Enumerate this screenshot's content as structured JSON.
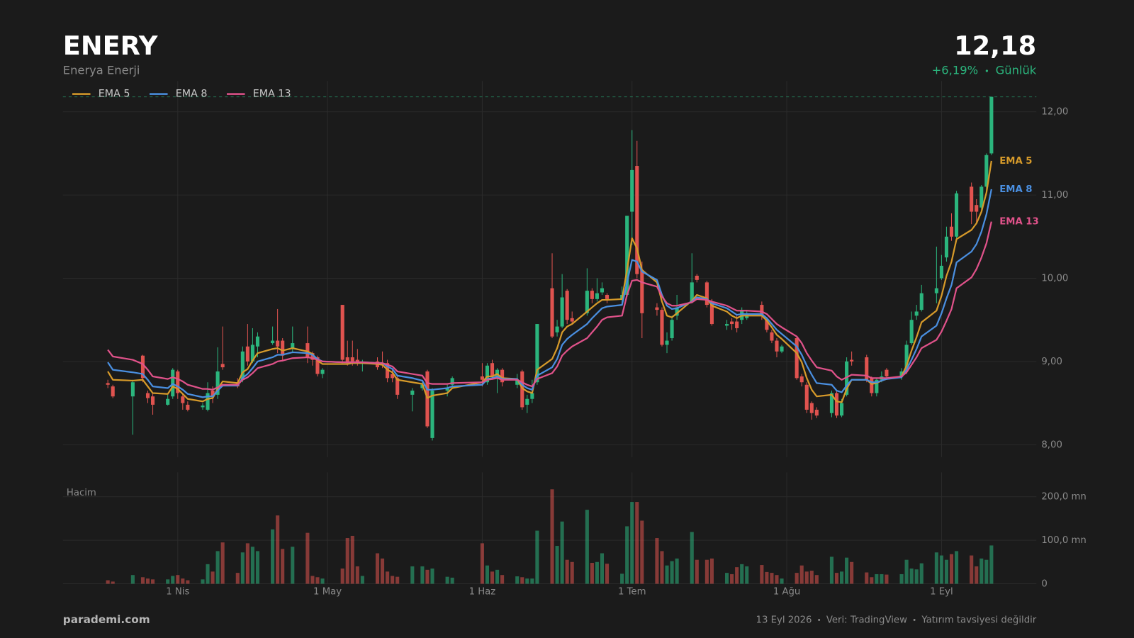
{
  "chart_data": {
    "type": "candlestick",
    "title": "ENERY",
    "subtitle": "Enerya Enerji",
    "last_price": {
      "value": 12.18,
      "label": "12,18"
    },
    "change": {
      "value": 6.19,
      "label": "+6,19%"
    },
    "period": "Günlük",
    "volume_label": "Hacim",
    "brand": "parademi.com",
    "date": "13 Eyl 2026",
    "source": "Veri: TradingView",
    "disclaimer": "Yatırım tavsiyesi değildir",
    "up_color": "#2bb57d",
    "down_color": "#e0534f",
    "grid": true,
    "legend": "top-left",
    "xlim": [
      "2026-03-09",
      "2026-09-20"
    ],
    "xticks": [
      {
        "value": "2026-04-01",
        "label": "1 Nis"
      },
      {
        "value": "2026-05-01",
        "label": "1 May"
      },
      {
        "value": "2026-06-01",
        "label": "1 Haz"
      },
      {
        "value": "2026-07-01",
        "label": "1 Tem"
      },
      {
        "value": "2026-08-01",
        "label": "1 Ağu"
      },
      {
        "value": "2026-09-01",
        "label": "1 Eyl"
      }
    ],
    "ylim": [
      7.85,
      12.37
    ],
    "yticks": [
      {
        "value": 8,
        "label": "8,00"
      },
      {
        "value": 9,
        "label": "9,00"
      },
      {
        "value": 10,
        "label": "10,00"
      },
      {
        "value": 11,
        "label": "11,00"
      },
      {
        "value": 12,
        "label": "12,00"
      }
    ],
    "volume_ylim": [
      0,
      256
    ],
    "volume_yticks": [
      0,
      {
        "value": 100,
        "label": "100,0 mn"
      },
      {
        "value": 200,
        "label": "200,0 mn"
      }
    ],
    "x": [
      "2026-03-18",
      "2026-03-19",
      "2026-03-23",
      "2026-03-25",
      "2026-03-26",
      "2026-03-27",
      "2026-03-30",
      "2026-03-31",
      "2026-04-01",
      "2026-04-02",
      "2026-04-03",
      "2026-04-06",
      "2026-04-07",
      "2026-04-08",
      "2026-04-09",
      "2026-04-10",
      "2026-04-13",
      "2026-04-14",
      "2026-04-15",
      "2026-04-16",
      "2026-04-17",
      "2026-04-20",
      "2026-04-21",
      "2026-04-22",
      "2026-04-24",
      "2026-04-27",
      "2026-04-28",
      "2026-04-29",
      "2026-04-30",
      "2026-05-04",
      "2026-05-05",
      "2026-05-06",
      "2026-05-07",
      "2026-05-08",
      "2026-05-11",
      "2026-05-12",
      "2026-05-13",
      "2026-05-14",
      "2026-05-15",
      "2026-05-18",
      "2026-05-20",
      "2026-05-21",
      "2026-05-22",
      "2026-05-25",
      "2026-05-26",
      "2026-06-01",
      "2026-06-02",
      "2026-06-03",
      "2026-06-04",
      "2026-06-05",
      "2026-06-08",
      "2026-06-09",
      "2026-06-10",
      "2026-06-11",
      "2026-06-12",
      "2026-06-15",
      "2026-06-16",
      "2026-06-17",
      "2026-06-18",
      "2026-06-19",
      "2026-06-22",
      "2026-06-23",
      "2026-06-24",
      "2026-06-25",
      "2026-06-26",
      "2026-06-29",
      "2026-06-30",
      "2026-07-01",
      "2026-07-02",
      "2026-07-03",
      "2026-07-06",
      "2026-07-07",
      "2026-07-08",
      "2026-07-09",
      "2026-07-10",
      "2026-07-13",
      "2026-07-14",
      "2026-07-16",
      "2026-07-17",
      "2026-07-20",
      "2026-07-21",
      "2026-07-22",
      "2026-07-23",
      "2026-07-24",
      "2026-07-27",
      "2026-07-28",
      "2026-07-29",
      "2026-07-30",
      "2026-07-31",
      "2026-08-03",
      "2026-08-04",
      "2026-08-05",
      "2026-08-06",
      "2026-08-07",
      "2026-08-10",
      "2026-08-11",
      "2026-08-12",
      "2026-08-13",
      "2026-08-14",
      "2026-08-17",
      "2026-08-18",
      "2026-08-19",
      "2026-08-20",
      "2026-08-21",
      "2026-08-24",
      "2026-08-25",
      "2026-08-26",
      "2026-08-27",
      "2026-08-28",
      "2026-08-31",
      "2026-09-01",
      "2026-09-02",
      "2026-09-03",
      "2026-09-04",
      "2026-09-07",
      "2026-09-08",
      "2026-09-09",
      "2026-09-10",
      "2026-09-11"
    ],
    "open": [
      8.74,
      8.7,
      8.58,
      9.07,
      8.62,
      8.58,
      8.48,
      8.58,
      8.88,
      8.58,
      8.48,
      8.45,
      8.42,
      8.65,
      8.6,
      8.97,
      8.75,
      8.78,
      9.18,
      9.0,
      9.18,
      9.22,
      9.25,
      9.25,
      9.15,
      9.22,
      9.1,
      9.05,
      8.85,
      9.68,
      9.05,
      9.05,
      9.02,
      8.98,
      9.0,
      8.98,
      8.98,
      8.85,
      8.8,
      8.6,
      8.68,
      8.88,
      8.08,
      8.65,
      8.72,
      8.82,
      8.75,
      8.98,
      8.8,
      8.9,
      8.72,
      8.88,
      8.48,
      8.55,
      8.75,
      9.88,
      9.35,
      9.42,
      9.85,
      9.52,
      9.58,
      9.85,
      9.75,
      9.83,
      9.8,
      9.75,
      9.8,
      10.8,
      11.35,
      10.1,
      9.65,
      9.62,
      9.2,
      9.28,
      9.55,
      9.72,
      10.03,
      9.95,
      9.72,
      9.43,
      9.48,
      9.48,
      9.5,
      9.52,
      9.68,
      9.5,
      9.35,
      9.25,
      9.12,
      9.28,
      8.82,
      8.72,
      8.5,
      8.42,
      8.38,
      8.62,
      8.35,
      8.6,
      9.02,
      9.05,
      8.8,
      8.62,
      8.78,
      8.9,
      8.82,
      8.9,
      9.22,
      9.55,
      9.62,
      9.82,
      10.0,
      10.25,
      10.62,
      10.5,
      11.1,
      10.88,
      10.85,
      11.1,
      11.5
    ],
    "high": [
      8.78,
      8.72,
      8.78,
      9.08,
      8.65,
      8.62,
      8.6,
      8.92,
      8.9,
      8.62,
      8.52,
      8.5,
      8.75,
      8.7,
      9.17,
      9.42,
      8.8,
      9.18,
      9.45,
      9.4,
      9.35,
      9.42,
      9.63,
      9.28,
      9.42,
      9.42,
      9.12,
      9.07,
      8.92,
      9.68,
      9.25,
      9.25,
      9.15,
      9.02,
      9.05,
      9.12,
      9.02,
      8.9,
      8.82,
      8.68,
      8.75,
      8.9,
      8.68,
      8.72,
      8.82,
      8.98,
      8.98,
      9.02,
      8.92,
      8.92,
      8.85,
      8.9,
      8.6,
      8.78,
      9.45,
      10.3,
      9.5,
      10.05,
      9.87,
      9.6,
      10.12,
      9.88,
      10.0,
      9.95,
      9.82,
      9.9,
      10.75,
      11.78,
      11.65,
      10.2,
      9.7,
      9.65,
      9.35,
      9.55,
      9.8,
      10.3,
      10.05,
      9.97,
      9.75,
      9.5,
      9.52,
      9.55,
      9.65,
      9.62,
      9.72,
      9.52,
      9.38,
      9.28,
      9.2,
      9.3,
      8.85,
      8.75,
      8.52,
      8.45,
      8.65,
      8.65,
      8.55,
      9.05,
      9.12,
      9.08,
      8.82,
      8.8,
      8.88,
      8.92,
      8.92,
      9.25,
      9.6,
      9.68,
      9.92,
      10.38,
      10.28,
      10.62,
      10.78,
      11.05,
      11.15,
      10.95,
      11.12,
      11.5,
      12.18
    ],
    "low": [
      8.68,
      8.56,
      8.12,
      8.75,
      8.5,
      8.36,
      8.47,
      8.55,
      8.55,
      8.42,
      8.4,
      8.42,
      8.4,
      8.5,
      8.55,
      8.9,
      8.68,
      8.75,
      8.95,
      8.98,
      9.05,
      9.2,
      9.1,
      9.0,
      9.1,
      8.98,
      8.95,
      8.82,
      8.8,
      8.98,
      8.95,
      8.95,
      8.95,
      8.88,
      8.9,
      8.92,
      8.75,
      8.75,
      8.55,
      8.4,
      8.65,
      8.2,
      8.05,
      8.58,
      8.68,
      8.7,
      8.72,
      8.78,
      8.62,
      8.7,
      8.68,
      8.42,
      8.38,
      8.5,
      8.72,
      9.28,
      9.3,
      9.4,
      9.45,
      9.45,
      9.55,
      9.7,
      9.72,
      9.8,
      9.7,
      9.7,
      9.78,
      10.4,
      10.0,
      9.28,
      9.55,
      9.18,
      9.1,
      9.25,
      9.5,
      9.7,
      9.95,
      9.65,
      9.43,
      9.38,
      9.38,
      9.35,
      9.45,
      9.5,
      9.5,
      9.35,
      9.22,
      9.05,
      9.1,
      8.78,
      8.7,
      8.38,
      8.3,
      8.32,
      8.33,
      8.32,
      8.33,
      8.58,
      8.95,
      8.75,
      8.58,
      8.58,
      8.75,
      8.8,
      8.78,
      8.85,
      9.2,
      9.5,
      9.6,
      9.7,
      9.98,
      10.2,
      10.45,
      10.48,
      10.65,
      10.65,
      10.82,
      11.05,
      11.48
    ],
    "close": [
      8.72,
      8.58,
      8.75,
      8.8,
      8.56,
      8.48,
      8.55,
      8.9,
      8.62,
      8.5,
      8.42,
      8.47,
      8.62,
      8.58,
      8.88,
      8.93,
      8.7,
      9.12,
      9.0,
      9.2,
      9.3,
      9.25,
      9.18,
      9.07,
      9.22,
      9.05,
      9.02,
      8.85,
      8.9,
      9.02,
      8.98,
      9.0,
      8.98,
      9.0,
      8.93,
      8.96,
      8.8,
      8.8,
      8.6,
      8.65,
      8.72,
      8.22,
      8.65,
      8.68,
      8.8,
      8.78,
      8.95,
      8.82,
      8.9,
      8.75,
      8.78,
      8.45,
      8.55,
      8.62,
      9.45,
      9.3,
      9.42,
      9.77,
      9.5,
      9.48,
      9.85,
      9.75,
      9.82,
      9.88,
      9.75,
      9.8,
      10.75,
      11.3,
      10.05,
      9.58,
      9.62,
      9.2,
      9.25,
      9.5,
      9.65,
      9.95,
      9.98,
      9.68,
      9.45,
      9.45,
      9.45,
      9.4,
      9.62,
      9.55,
      9.55,
      9.38,
      9.25,
      9.12,
      9.18,
      8.8,
      8.75,
      8.42,
      8.38,
      8.35,
      8.62,
      8.35,
      8.5,
      9.0,
      9.0,
      8.78,
      8.62,
      8.78,
      8.82,
      8.82,
      8.88,
      9.2,
      9.5,
      9.6,
      9.82,
      9.88,
      10.15,
      10.5,
      10.5,
      11.02,
      10.8,
      10.8,
      11.1,
      11.48,
      12.18
    ],
    "volume": [
      8,
      5,
      20,
      15,
      12,
      10,
      10,
      18,
      20,
      12,
      8,
      10,
      45,
      28,
      75,
      95,
      25,
      72,
      93,
      85,
      75,
      125,
      157,
      80,
      85,
      117,
      18,
      15,
      12,
      35,
      105,
      110,
      40,
      18,
      70,
      58,
      28,
      18,
      16,
      40,
      40,
      32,
      35,
      16,
      14,
      93,
      42,
      28,
      32,
      20,
      17,
      15,
      12,
      12,
      122,
      217,
      87,
      143,
      55,
      50,
      170,
      48,
      50,
      70,
      46,
      23,
      132,
      188,
      188,
      145,
      105,
      75,
      42,
      52,
      58,
      119,
      55,
      55,
      58,
      25,
      22,
      38,
      45,
      40,
      43,
      27,
      25,
      20,
      12,
      25,
      42,
      28,
      30,
      20,
      62,
      25,
      28,
      60,
      50,
      26,
      15,
      22,
      22,
      21,
      22,
      55,
      35,
      33,
      47,
      72,
      65,
      55,
      68,
      75,
      65,
      40,
      58,
      55,
      88
    ],
    "series": [
      {
        "name": "EMA 5",
        "color": "#d69a2a",
        "values": [
          8.88,
          8.78,
          8.77,
          8.78,
          8.7,
          8.62,
          8.61,
          8.7,
          8.67,
          8.61,
          8.55,
          8.52,
          8.55,
          8.56,
          8.67,
          8.76,
          8.74,
          8.87,
          8.91,
          9.01,
          9.1,
          9.15,
          9.16,
          9.13,
          9.16,
          9.12,
          9.09,
          9.01,
          8.97,
          8.97,
          8.97,
          8.98,
          8.98,
          8.98,
          8.97,
          8.96,
          8.9,
          8.87,
          8.78,
          8.75,
          8.73,
          8.56,
          8.59,
          8.62,
          8.68,
          8.75,
          8.82,
          8.82,
          8.85,
          8.8,
          8.79,
          8.68,
          8.64,
          8.62,
          8.9,
          9.03,
          9.16,
          9.35,
          9.42,
          9.45,
          9.6,
          9.65,
          9.7,
          9.74,
          9.74,
          9.75,
          10.1,
          10.48,
          10.36,
          10.1,
          9.95,
          9.72,
          9.55,
          9.53,
          9.58,
          9.73,
          9.8,
          9.76,
          9.67,
          9.6,
          9.55,
          9.52,
          9.55,
          9.55,
          9.55,
          9.49,
          9.41,
          9.32,
          9.27,
          9.1,
          8.99,
          8.8,
          8.66,
          8.58,
          8.6,
          8.52,
          8.51,
          8.67,
          8.78,
          8.78,
          8.73,
          8.74,
          8.77,
          8.79,
          8.82,
          8.95,
          9.13,
          9.29,
          9.47,
          9.61,
          9.79,
          10.03,
          10.2,
          10.47,
          10.58,
          10.66,
          10.8,
          11.03,
          11.41
        ]
      },
      {
        "name": "EMA 8",
        "color": "#4a8fe0",
        "values": [
          8.99,
          8.9,
          8.87,
          8.85,
          8.78,
          8.7,
          8.68,
          8.73,
          8.7,
          8.66,
          8.61,
          8.57,
          8.58,
          8.58,
          8.65,
          8.71,
          8.71,
          8.8,
          8.85,
          8.92,
          9.0,
          9.05,
          9.08,
          9.08,
          9.11,
          9.1,
          9.08,
          9.03,
          9.0,
          8.99,
          8.99,
          8.99,
          8.99,
          8.99,
          8.98,
          8.98,
          8.94,
          8.91,
          8.83,
          8.8,
          8.77,
          8.66,
          8.66,
          8.68,
          8.7,
          8.72,
          8.79,
          8.8,
          8.82,
          8.79,
          8.79,
          8.72,
          8.68,
          8.66,
          8.83,
          8.93,
          9.03,
          9.2,
          9.27,
          9.32,
          9.45,
          9.52,
          9.58,
          9.64,
          9.66,
          9.68,
          9.95,
          10.22,
          10.2,
          10.08,
          9.98,
          9.8,
          9.67,
          9.63,
          9.64,
          9.72,
          9.77,
          9.75,
          9.7,
          9.64,
          9.6,
          9.56,
          9.57,
          9.57,
          9.57,
          9.52,
          9.45,
          9.38,
          9.33,
          9.18,
          9.08,
          8.95,
          8.84,
          8.74,
          8.72,
          8.65,
          8.63,
          8.71,
          8.78,
          8.78,
          8.75,
          8.75,
          8.77,
          8.79,
          8.81,
          8.9,
          9.02,
          9.15,
          9.3,
          9.43,
          9.58,
          9.76,
          9.92,
          10.19,
          10.32,
          10.41,
          10.56,
          10.77,
          11.07
        ]
      },
      {
        "name": "EMA 13",
        "color": "#e0528a",
        "values": [
          9.14,
          9.06,
          9.02,
          8.97,
          8.9,
          8.82,
          8.79,
          8.81,
          8.79,
          8.76,
          8.72,
          8.67,
          8.67,
          8.66,
          8.69,
          8.72,
          8.72,
          8.78,
          8.81,
          8.86,
          8.92,
          8.97,
          9.0,
          9.01,
          9.04,
          9.05,
          9.04,
          9.02,
          9.0,
          8.99,
          8.99,
          8.99,
          8.99,
          8.99,
          8.98,
          8.98,
          8.96,
          8.94,
          8.88,
          8.85,
          8.83,
          8.74,
          8.73,
          8.73,
          8.74,
          8.75,
          8.78,
          8.79,
          8.8,
          8.78,
          8.78,
          8.75,
          8.72,
          8.7,
          8.79,
          8.86,
          8.94,
          9.07,
          9.13,
          9.18,
          9.28,
          9.35,
          9.42,
          9.5,
          9.53,
          9.55,
          9.8,
          9.97,
          9.98,
          9.95,
          9.9,
          9.78,
          9.7,
          9.67,
          9.67,
          9.71,
          9.75,
          9.74,
          9.72,
          9.67,
          9.64,
          9.61,
          9.61,
          9.61,
          9.6,
          9.57,
          9.51,
          9.45,
          9.41,
          9.3,
          9.22,
          9.1,
          9.01,
          8.93,
          8.89,
          8.82,
          8.78,
          8.81,
          8.84,
          8.83,
          8.8,
          8.8,
          8.8,
          8.8,
          8.82,
          8.87,
          8.96,
          9.05,
          9.16,
          9.26,
          9.36,
          9.49,
          9.63,
          9.88,
          10.01,
          10.11,
          10.25,
          10.42,
          10.68
        ]
      }
    ]
  }
}
